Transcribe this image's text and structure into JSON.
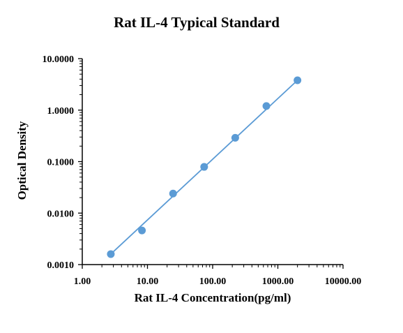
{
  "chart_data": {
    "type": "scatter",
    "title": "Rat IL-4 Typical Standard",
    "xlabel": "Rat IL-4 Concentration(pg/ml)",
    "ylabel": "Optical Density",
    "x_scale": "log",
    "y_scale": "log",
    "xlim": [
      1,
      10000
    ],
    "ylim": [
      0.001,
      10
    ],
    "x_ticks": [
      1,
      10,
      100,
      1000,
      10000
    ],
    "x_tick_labels": [
      "1.00",
      "10.00",
      "100.00",
      "1000.00",
      "10000.00"
    ],
    "y_ticks": [
      0.001,
      0.01,
      0.1,
      1,
      10
    ],
    "y_tick_labels": [
      "0.0010",
      "0.0100",
      "0.1000",
      "1.0000",
      "10.0000"
    ],
    "grid": false,
    "legend": "none",
    "series": [
      {
        "color": "#5B9BD5",
        "points": [
          {
            "x": 2.74,
            "y": 0.0016
          },
          {
            "x": 8.23,
            "y": 0.0046
          },
          {
            "x": 24.7,
            "y": 0.024
          },
          {
            "x": 74.1,
            "y": 0.079
          },
          {
            "x": 222,
            "y": 0.29
          },
          {
            "x": 667,
            "y": 1.2
          },
          {
            "x": 2000,
            "y": 3.8
          }
        ],
        "fit_line": [
          {
            "x": 2.74,
            "y": 0.0016
          },
          {
            "x": 2000,
            "y": 3.8
          }
        ]
      }
    ]
  }
}
